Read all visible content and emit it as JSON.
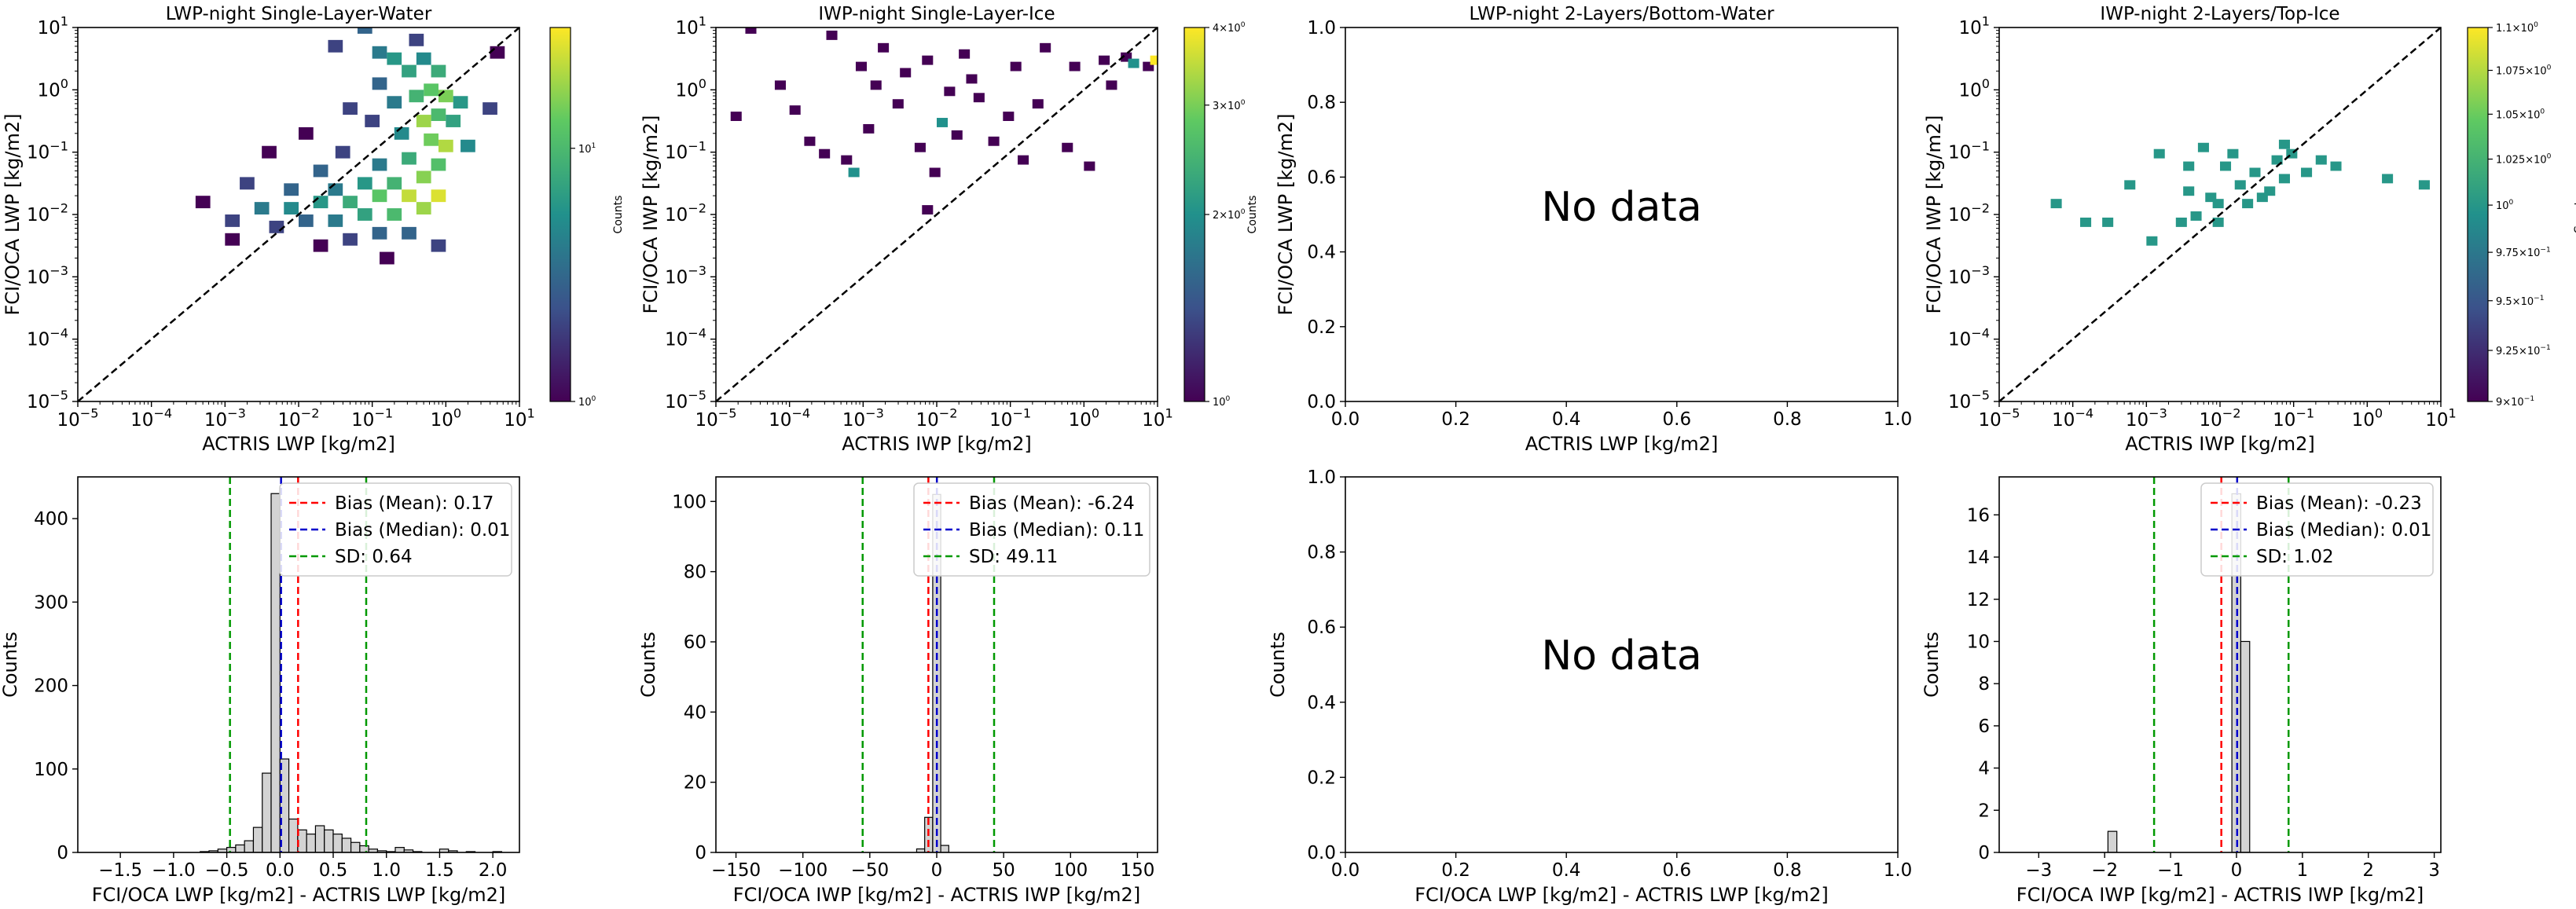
{
  "figure": {
    "colorbar_label": "Counts",
    "no_data_label": "No data"
  },
  "colors": {
    "bias_mean": "#ff0000",
    "bias_median": "#0000cc",
    "sd": "#009900",
    "hist_fill": "#d3d3d3",
    "diagonal": "#000000",
    "viridis": [
      "#440154",
      "#3b528b",
      "#21918c",
      "#5ec962",
      "#fde725"
    ]
  },
  "chart_data": [
    {
      "panel": "top-1",
      "type": "heatmap",
      "title": "LWP-night Single-Layer-Water",
      "xlabel": "ACTRIS LWP [kg/m2]",
      "ylabel": "FCI/OCA LWP [kg/m2]",
      "xscale": "log",
      "yscale": "log",
      "xlim": [
        1e-05,
        10
      ],
      "ylim": [
        1e-05,
        10
      ],
      "xticks": [
        -5,
        -4,
        -3,
        -2,
        -1,
        0,
        1
      ],
      "yticks": [
        -5,
        -4,
        -3,
        -2,
        -1,
        0,
        1
      ],
      "diagonal": true,
      "colorbar": {
        "scale": "log",
        "min": 1,
        "max": 30,
        "ticks": [
          {
            "value": 1,
            "label": "10^0"
          },
          {
            "value": 10,
            "label": "10^1"
          }
        ]
      },
      "bins_log10": [
        [
          -1.2,
          0.9,
          3
        ],
        [
          -1.6,
          0.6,
          2
        ],
        [
          -1.0,
          0.5,
          4
        ],
        [
          -0.8,
          0.4,
          6
        ],
        [
          -0.4,
          0.4,
          5
        ],
        [
          -0.2,
          0.2,
          8
        ],
        [
          -0.6,
          0.2,
          7
        ],
        [
          -1.0,
          0.0,
          3
        ],
        [
          -0.3,
          -0.1,
          12
        ],
        [
          -0.5,
          -0.2,
          9
        ],
        [
          -0.1,
          -0.2,
          15
        ],
        [
          0.1,
          -0.3,
          6
        ],
        [
          -0.8,
          -0.3,
          4
        ],
        [
          -1.4,
          -0.4,
          2
        ],
        [
          -0.2,
          -0.5,
          10
        ],
        [
          -0.4,
          -0.6,
          18
        ],
        [
          0.0,
          -0.6,
          7
        ],
        [
          -1.1,
          -0.6,
          2
        ],
        [
          -2.0,
          -0.8,
          1
        ],
        [
          -0.7,
          -0.8,
          5
        ],
        [
          -0.3,
          -0.9,
          14
        ],
        [
          -0.1,
          -1.0,
          20
        ],
        [
          0.2,
          -1.0,
          5
        ],
        [
          -1.5,
          -1.1,
          2
        ],
        [
          -2.5,
          -1.1,
          1
        ],
        [
          -0.6,
          -1.2,
          8
        ],
        [
          -0.2,
          -1.3,
          11
        ],
        [
          -1.0,
          -1.3,
          4
        ],
        [
          -1.8,
          -1.4,
          3
        ],
        [
          -0.4,
          -1.5,
          16
        ],
        [
          -0.8,
          -1.6,
          9
        ],
        [
          -1.2,
          -1.6,
          6
        ],
        [
          -1.6,
          -1.7,
          4
        ],
        [
          -2.2,
          -1.7,
          3
        ],
        [
          -0.2,
          -1.8,
          25
        ],
        [
          -0.6,
          -1.8,
          22
        ],
        [
          -1.0,
          -1.8,
          12
        ],
        [
          -1.4,
          -1.9,
          8
        ],
        [
          -1.8,
          -1.9,
          6
        ],
        [
          -2.2,
          -2.0,
          5
        ],
        [
          -2.6,
          -2.0,
          4
        ],
        [
          -0.4,
          -2.0,
          18
        ],
        [
          -0.8,
          -2.1,
          10
        ],
        [
          -1.2,
          -2.1,
          7
        ],
        [
          -1.6,
          -2.2,
          4
        ],
        [
          -2.0,
          -2.2,
          3
        ],
        [
          -2.4,
          -2.3,
          2
        ],
        [
          -1.0,
          -2.4,
          3
        ],
        [
          -1.4,
          -2.5,
          2
        ],
        [
          -0.6,
          -2.4,
          3
        ],
        [
          -3.0,
          -2.2,
          2
        ],
        [
          -3.4,
          -1.9,
          1
        ],
        [
          -0.2,
          -2.6,
          2
        ],
        [
          -1.8,
          -2.6,
          1
        ],
        [
          -0.9,
          -2.8,
          1
        ],
        [
          0.5,
          -0.4,
          2
        ],
        [
          0.6,
          0.5,
          1
        ],
        [
          -3.0,
          -2.5,
          1
        ],
        [
          -2.8,
          -1.6,
          2
        ],
        [
          -0.5,
          0.7,
          2
        ]
      ],
      "bin_width_log10": 0.2
    },
    {
      "panel": "top-2",
      "type": "heatmap",
      "title": "IWP-night Single-Layer-Ice",
      "xlabel": "ACTRIS IWP [kg/m2]",
      "ylabel": "FCI/OCA IWP [kg/m2]",
      "xscale": "log",
      "yscale": "log",
      "xlim": [
        1e-05,
        10
      ],
      "ylim": [
        1e-05,
        10
      ],
      "xticks": [
        -5,
        -4,
        -3,
        -2,
        -1,
        0,
        1
      ],
      "yticks": [
        -5,
        -4,
        -3,
        -2,
        -1,
        0,
        1
      ],
      "diagonal": true,
      "colorbar": {
        "scale": "log",
        "min": 1,
        "max": 4,
        "ticks": [
          {
            "value": 1,
            "label": "10^0"
          },
          {
            "value": 2,
            "label": "2×10^0"
          },
          {
            "value": 3,
            "label": "3×10^0"
          },
          {
            "value": 4,
            "label": "4×10^0"
          }
        ]
      },
      "bins_log10": [
        [
          -4.6,
          0.9,
          1
        ],
        [
          -3.5,
          0.8,
          1
        ],
        [
          -2.8,
          0.6,
          1
        ],
        [
          -2.2,
          0.4,
          1
        ],
        [
          -1.7,
          0.5,
          1
        ],
        [
          -1.0,
          0.3,
          1
        ],
        [
          -0.6,
          0.6,
          1
        ],
        [
          -0.2,
          0.3,
          1
        ],
        [
          0.2,
          0.4,
          1
        ],
        [
          0.5,
          0.45,
          1
        ],
        [
          0.6,
          0.35,
          2
        ],
        [
          0.8,
          0.3,
          1
        ],
        [
          0.9,
          0.4,
          4
        ],
        [
          -4.8,
          -0.5,
          1
        ],
        [
          -4.2,
          0.0,
          1
        ],
        [
          -3.8,
          -0.9,
          1
        ],
        [
          -3.3,
          -1.2,
          1
        ],
        [
          -3.0,
          -0.7,
          1
        ],
        [
          -2.6,
          -0.3,
          1
        ],
        [
          -2.3,
          -1.0,
          1
        ],
        [
          -2.0,
          -0.6,
          2
        ],
        [
          -1.8,
          -0.8,
          1
        ],
        [
          -1.5,
          -0.2,
          1
        ],
        [
          -1.3,
          -0.9,
          1
        ],
        [
          -2.9,
          0.0,
          1
        ],
        [
          -3.6,
          -1.1,
          1
        ],
        [
          -2.1,
          -1.4,
          1
        ],
        [
          -1.1,
          -0.5,
          1
        ],
        [
          -0.7,
          -0.3,
          1
        ],
        [
          -0.3,
          -1.0,
          1
        ],
        [
          0.0,
          -1.3,
          1
        ],
        [
          -1.6,
          0.1,
          1
        ],
        [
          -2.5,
          0.2,
          1
        ],
        [
          -3.2,
          -1.4,
          2
        ],
        [
          -2.2,
          -2.0,
          1
        ],
        [
          0.3,
          0.0,
          1
        ],
        [
          -1.9,
          -0.1,
          1
        ],
        [
          -4.0,
          -0.4,
          1
        ],
        [
          -3.1,
          0.3,
          1
        ],
        [
          -0.9,
          -1.2,
          1
        ]
      ],
      "bin_width_log10": 0.15
    },
    {
      "panel": "top-3",
      "type": "scatter",
      "title": "LWP-night 2-Layers/Bottom-Water",
      "xlabel": "ACTRIS LWP [kg/m2]",
      "ylabel": "FCI/OCA LWP [kg/m2]",
      "xlim": [
        0.0,
        1.0
      ],
      "ylim": [
        0.0,
        1.0
      ],
      "xticks": [
        "0.0",
        "0.2",
        "0.4",
        "0.6",
        "0.8",
        "1.0"
      ],
      "yticks": [
        "0.0",
        "0.2",
        "0.4",
        "0.6",
        "0.8",
        "1.0"
      ],
      "annotation": "No data"
    },
    {
      "panel": "top-4",
      "type": "heatmap",
      "title": "IWP-night 2-Layers/Top-Ice",
      "xlabel": "ACTRIS IWP [kg/m2]",
      "ylabel": "FCI/OCA IWP [kg/m2]",
      "xscale": "log",
      "yscale": "log",
      "xlim": [
        1e-05,
        10
      ],
      "ylim": [
        1e-05,
        10
      ],
      "xticks": [
        -5,
        -4,
        -3,
        -2,
        -1,
        0,
        1
      ],
      "yticks": [
        -5,
        -4,
        -3,
        -2,
        -1,
        0,
        1
      ],
      "diagonal": true,
      "colorbar": {
        "scale": "log",
        "min": 0.9,
        "max": 1.1,
        "ticks": [
          {
            "value": 0.9,
            "label": "9×10^-1"
          },
          {
            "value": 0.925,
            "label": "9.25×10^-1"
          },
          {
            "value": 0.95,
            "label": "9.5×10^-1"
          },
          {
            "value": 0.975,
            "label": "9.75×10^-1"
          },
          {
            "value": 1.0,
            "label": "10^0"
          },
          {
            "value": 1.025,
            "label": "1.025×10^0"
          },
          {
            "value": 1.05,
            "label": "1.05×10^0"
          },
          {
            "value": 1.075,
            "label": "1.075×10^0"
          },
          {
            "value": 1.1,
            "label": "1.1×10^0"
          }
        ]
      },
      "bins_log10": [
        [
          -4.3,
          -1.9,
          1
        ],
        [
          -3.9,
          -2.2,
          1
        ],
        [
          -3.6,
          -2.2,
          1
        ],
        [
          -3.3,
          -1.6,
          1
        ],
        [
          -3.0,
          -2.5,
          1
        ],
        [
          -2.9,
          -1.1,
          1
        ],
        [
          -2.6,
          -2.2,
          1
        ],
        [
          -2.5,
          -1.3,
          1
        ],
        [
          -2.5,
          -1.7,
          1
        ],
        [
          -2.2,
          -1.8,
          1
        ],
        [
          -2.1,
          -2.2,
          1
        ],
        [
          -2.0,
          -1.3,
          1
        ],
        [
          -1.8,
          -1.6,
          1
        ],
        [
          -1.7,
          -1.9,
          1
        ],
        [
          -1.6,
          -1.4,
          1
        ],
        [
          -1.5,
          -1.8,
          1
        ],
        [
          -1.4,
          -1.7,
          1
        ],
        [
          -1.3,
          -1.2,
          1
        ],
        [
          -1.2,
          -1.5,
          1
        ],
        [
          -1.1,
          -1.1,
          1
        ],
        [
          -0.9,
          -1.4,
          1
        ],
        [
          -0.7,
          -1.2,
          1
        ],
        [
          -0.5,
          -1.3,
          1
        ],
        [
          -2.4,
          -2.1,
          1
        ],
        [
          -2.1,
          -1.9,
          1
        ],
        [
          -1.9,
          -1.1,
          1
        ],
        [
          -1.2,
          -0.95,
          1
        ],
        [
          0.2,
          -1.5,
          1
        ],
        [
          0.7,
          -1.6,
          1
        ],
        [
          -2.3,
          -1.0,
          1
        ]
      ],
      "bin_width_log10": 0.15
    },
    {
      "panel": "bottom-1",
      "type": "bar",
      "xlabel": "FCI/OCA LWP [kg/m2] - ACTRIS LWP [kg/m2]",
      "ylabel": "Counts",
      "xlim": [
        -1.9,
        2.25
      ],
      "ylim": [
        0,
        450
      ],
      "xticks": [
        -1.5,
        -1.0,
        -0.5,
        0.0,
        0.5,
        1.0,
        1.5,
        2.0
      ],
      "xtick_labels": [
        "−1.5",
        "−1.0",
        "−0.5",
        "0.0",
        "0.5",
        "1.0",
        "1.5",
        "2.0"
      ],
      "yticks": [
        0,
        100,
        200,
        300,
        400
      ],
      "ytick_labels": [
        "0",
        "100",
        "200",
        "300",
        "400"
      ],
      "bin_width": 0.0833,
      "bin_starts": [
        -0.75,
        -0.6667,
        -0.5833,
        -0.5,
        -0.4167,
        -0.3333,
        -0.25,
        -0.1667,
        -0.0833,
        0.0,
        0.0833,
        0.1667,
        0.25,
        0.3333,
        0.4167,
        0.5,
        0.5833,
        0.6667,
        0.75,
        0.8333,
        0.9167,
        1.0,
        1.0833,
        1.1667,
        1.25,
        1.5,
        1.5833,
        1.75,
        2.0
      ],
      "counts": [
        1,
        2,
        4,
        6,
        9,
        14,
        30,
        95,
        430,
        112,
        40,
        27,
        22,
        32,
        27,
        22,
        17,
        12,
        8,
        4,
        2,
        1,
        6,
        3,
        1,
        4,
        2,
        1,
        1
      ],
      "lines": [
        {
          "kind": "mean",
          "x": 0.17,
          "label": "Bias (Mean): 0.17"
        },
        {
          "kind": "median",
          "x": 0.01,
          "label": "Bias (Median): 0.01"
        },
        {
          "kind": "sd_lower",
          "x": -0.47
        },
        {
          "kind": "sd_upper",
          "x": 0.81,
          "label": "SD: 0.64"
        }
      ],
      "legend": "top-right"
    },
    {
      "panel": "bottom-2",
      "type": "bar",
      "xlabel": "FCI/OCA IWP [kg/m2] - ACTRIS IWP [kg/m2]",
      "ylabel": "Counts",
      "xlim": [
        -165,
        165
      ],
      "ylim": [
        0,
        107
      ],
      "xticks": [
        -150,
        -100,
        -50,
        0,
        50,
        100,
        150
      ],
      "xtick_labels": [
        "−150",
        "−100",
        "−50",
        "0",
        "50",
        "100",
        "150"
      ],
      "yticks": [
        0,
        20,
        40,
        60,
        80,
        100
      ],
      "ytick_labels": [
        "0",
        "20",
        "40",
        "60",
        "80",
        "100"
      ],
      "bin_width": 6,
      "bin_starts": [
        -15,
        -9,
        -3,
        3
      ],
      "counts": [
        1,
        10,
        102,
        2
      ],
      "lines": [
        {
          "kind": "mean",
          "x": -6.24,
          "label": "Bias (Mean): -6.24"
        },
        {
          "kind": "median",
          "x": 0.11,
          "label": "Bias (Median): 0.11"
        },
        {
          "kind": "sd_lower",
          "x": -55.35
        },
        {
          "kind": "sd_upper",
          "x": 42.87,
          "label": "SD: 49.11"
        }
      ],
      "legend": "top-right"
    },
    {
      "panel": "bottom-3",
      "type": "bar",
      "xlabel": "FCI/OCA LWP [kg/m2] - ACTRIS LWP [kg/m2]",
      "ylabel": "Counts",
      "xlim": [
        0.0,
        1.0
      ],
      "ylim": [
        0.0,
        1.0
      ],
      "xticks": [
        0.0,
        0.2,
        0.4,
        0.6,
        0.8,
        1.0
      ],
      "xtick_labels": [
        "0.0",
        "0.2",
        "0.4",
        "0.6",
        "0.8",
        "1.0"
      ],
      "yticks": [
        0.0,
        0.2,
        0.4,
        0.6,
        0.8,
        1.0
      ],
      "ytick_labels": [
        "0.0",
        "0.2",
        "0.4",
        "0.6",
        "0.8",
        "1.0"
      ],
      "bin_width": 0.1,
      "bin_starts": [],
      "counts": [],
      "lines": [],
      "annotation": "No data"
    },
    {
      "panel": "bottom-4",
      "type": "bar",
      "xlabel": "FCI/OCA IWP [kg/m2] - ACTRIS IWP [kg/m2]",
      "ylabel": "Counts",
      "xlim": [
        -3.6,
        3.1
      ],
      "ylim": [
        0,
        17.8
      ],
      "xticks": [
        -3,
        -2,
        -1,
        0,
        1,
        2,
        3
      ],
      "xtick_labels": [
        "−3",
        "−2",
        "−1",
        "0",
        "1",
        "2",
        "3"
      ],
      "yticks": [
        0,
        2,
        4,
        6,
        8,
        10,
        12,
        14,
        16
      ],
      "ytick_labels": [
        "0",
        "2",
        "4",
        "6",
        "8",
        "10",
        "12",
        "14",
        "16"
      ],
      "bin_width": 0.135,
      "bin_starts": [
        -1.95,
        -0.07,
        0.065
      ],
      "counts": [
        1,
        17,
        10
      ],
      "lines": [
        {
          "kind": "mean",
          "x": -0.23,
          "label": "Bias (Mean): -0.23"
        },
        {
          "kind": "median",
          "x": 0.01,
          "label": "Bias (Median): 0.01"
        },
        {
          "kind": "sd_lower",
          "x": -1.25
        },
        {
          "kind": "sd_upper",
          "x": 0.79,
          "label": "SD: 1.02"
        }
      ],
      "legend": "top-right"
    }
  ]
}
